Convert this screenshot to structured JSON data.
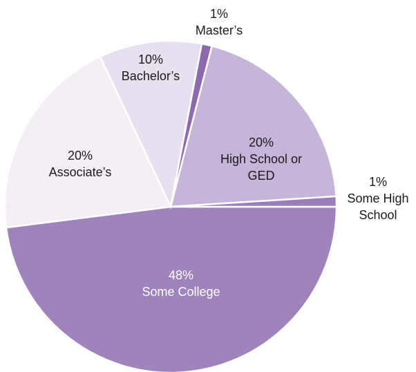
{
  "chart_data": {
    "type": "pie",
    "categories": [
      "Some College",
      "Associate’s",
      "Bachelor’s",
      "Master’s",
      "High School or GED",
      "Some High School"
    ],
    "values": [
      48,
      20,
      10,
      1,
      20,
      1
    ],
    "value_labels": [
      "48%",
      "20%",
      "10%",
      "1%",
      "20%",
      "1%"
    ],
    "colors": [
      "#9e84bb",
      "#f4eff7",
      "#e7e0ef",
      "#8d6aaf",
      "#c5b5d9",
      "#9a7eb9"
    ]
  }
}
